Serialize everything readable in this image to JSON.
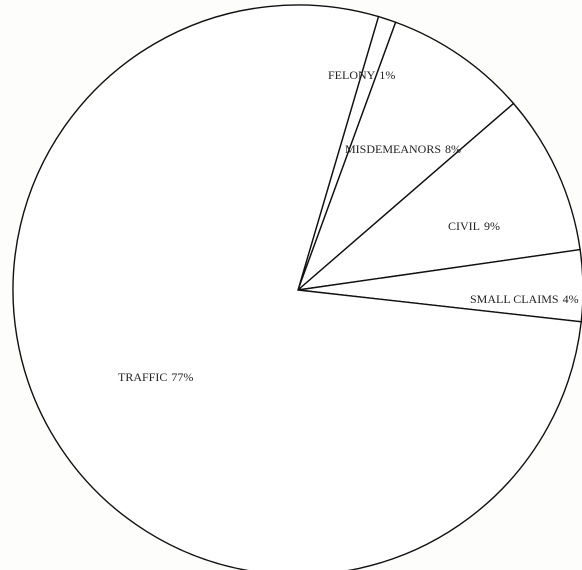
{
  "chart_data": {
    "type": "pie",
    "categories": [
      "FELONY",
      "MISDEMEANORS",
      "CIVIL",
      "SMALL CLAIMS",
      "TRAFFIC"
    ],
    "values": [
      1,
      8,
      9,
      4,
      77
    ],
    "value_labels": [
      "1%",
      "8%",
      "9%",
      "4%",
      "77%"
    ],
    "color": "#ffffff"
  }
}
